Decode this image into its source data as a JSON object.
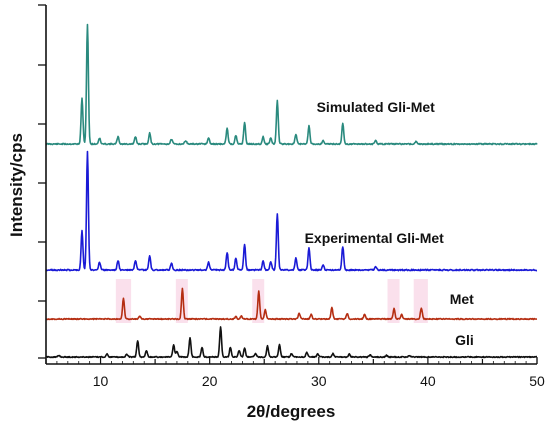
{
  "chart_data": {
    "type": "line",
    "title": "",
    "xlabel": "2θ/degrees",
    "ylabel": "Intensity/cps",
    "xlim": [
      5,
      50
    ],
    "xticks": [
      10,
      20,
      30,
      40,
      50
    ],
    "y_tick_labels_shown": false,
    "grid": false,
    "legend": "none (series labelled beside each trace)",
    "series": [
      {
        "name": "Simulated Gli-Met",
        "color": "#2a8a7e",
        "label_x": 29.8,
        "peaks": [
          [
            8.3,
            0.38
          ],
          [
            8.8,
            1.0
          ],
          [
            9.9,
            0.05
          ],
          [
            11.6,
            0.06
          ],
          [
            13.2,
            0.06
          ],
          [
            14.5,
            0.09
          ],
          [
            16.5,
            0.04
          ],
          [
            17.8,
            0.03
          ],
          [
            19.9,
            0.05
          ],
          [
            21.6,
            0.13
          ],
          [
            22.4,
            0.07
          ],
          [
            23.2,
            0.18
          ],
          [
            24.9,
            0.06
          ],
          [
            25.6,
            0.05
          ],
          [
            26.2,
            0.36
          ],
          [
            27.9,
            0.08
          ],
          [
            29.1,
            0.15
          ],
          [
            30.4,
            0.03
          ],
          [
            32.2,
            0.17
          ],
          [
            35.2,
            0.03
          ],
          [
            38.9,
            0.02
          ]
        ]
      },
      {
        "name": "Experimental Gli-Met",
        "color": "#1a1ad6",
        "label_x": 28.7,
        "peaks": [
          [
            8.3,
            0.33
          ],
          [
            8.8,
            1.0
          ],
          [
            9.9,
            0.07
          ],
          [
            11.6,
            0.08
          ],
          [
            13.2,
            0.08
          ],
          [
            14.5,
            0.12
          ],
          [
            16.5,
            0.06
          ],
          [
            19.9,
            0.07
          ],
          [
            21.6,
            0.15
          ],
          [
            22.4,
            0.1
          ],
          [
            23.2,
            0.22
          ],
          [
            24.9,
            0.08
          ],
          [
            25.6,
            0.07
          ],
          [
            26.2,
            0.48
          ],
          [
            27.9,
            0.1
          ],
          [
            29.1,
            0.19
          ],
          [
            30.4,
            0.04
          ],
          [
            32.2,
            0.2
          ],
          [
            35.2,
            0.03
          ]
        ]
      },
      {
        "name": "Met",
        "color": "#b52e12",
        "label_x": 42.0,
        "peaks": [
          [
            12.1,
            0.55
          ],
          [
            13.6,
            0.07
          ],
          [
            17.5,
            0.82
          ],
          [
            22.4,
            0.06
          ],
          [
            22.9,
            0.08
          ],
          [
            24.5,
            0.75
          ],
          [
            25.1,
            0.25
          ],
          [
            28.2,
            0.16
          ],
          [
            29.3,
            0.12
          ],
          [
            31.2,
            0.3
          ],
          [
            32.6,
            0.15
          ],
          [
            34.2,
            0.12
          ],
          [
            36.9,
            0.28
          ],
          [
            37.6,
            0.12
          ],
          [
            39.4,
            0.3
          ]
        ]
      },
      {
        "name": "Gli",
        "color": "#111111",
        "label_x": 42.5,
        "peaks": [
          [
            6.2,
            0.03
          ],
          [
            10.6,
            0.06
          ],
          [
            12.4,
            0.05
          ],
          [
            13.4,
            0.3
          ],
          [
            14.2,
            0.12
          ],
          [
            16.7,
            0.22
          ],
          [
            17.0,
            0.1
          ],
          [
            18.2,
            0.35
          ],
          [
            19.3,
            0.18
          ],
          [
            21.0,
            0.55
          ],
          [
            21.9,
            0.18
          ],
          [
            22.7,
            0.12
          ],
          [
            23.2,
            0.16
          ],
          [
            24.2,
            0.07
          ],
          [
            25.3,
            0.2
          ],
          [
            26.4,
            0.22
          ],
          [
            27.5,
            0.06
          ],
          [
            28.9,
            0.08
          ],
          [
            29.9,
            0.06
          ],
          [
            31.3,
            0.06
          ],
          [
            32.8,
            0.05
          ],
          [
            34.7,
            0.04
          ],
          [
            36.2,
            0.03
          ],
          [
            38.3,
            0.03
          ]
        ]
      }
    ],
    "highlights": [
      [
        11.4,
        12.8
      ],
      [
        16.9,
        18.0
      ],
      [
        23.9,
        25.0
      ],
      [
        36.3,
        37.4
      ],
      [
        38.7,
        40.0
      ]
    ],
    "highlight_color": "#f6c6dc"
  }
}
